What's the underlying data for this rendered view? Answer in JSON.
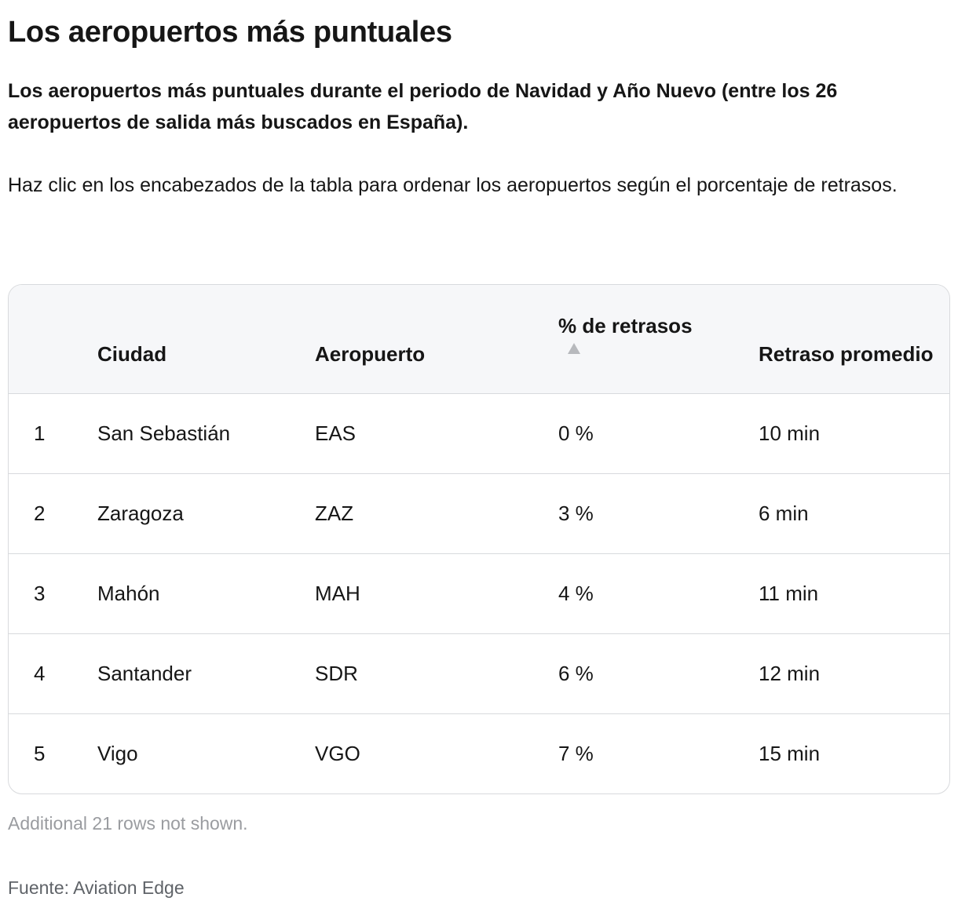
{
  "title": "Los aeropuertos más puntuales",
  "intro": "Los aeropuertos más puntuales durante el periodo de Navidad y Año Nuevo (entre los 26 aeropuertos de salida más buscados en España).",
  "instructions": "Haz clic en los encabezados de la tabla para ordenar los aeropuertos según el porcentaje de retrasos.",
  "table": {
    "headers": {
      "rank": "",
      "city": "Ciudad",
      "airport": "Aeropuerto",
      "delays": "% de retrasos",
      "avg_delay": "Retraso promedio"
    },
    "sort_icon": "sort-ascending-icon",
    "rows": [
      {
        "rank": "1",
        "city": "San Sebastián",
        "airport": "EAS",
        "delays": "0 %",
        "avg_delay": "10 min"
      },
      {
        "rank": "2",
        "city": "Zaragoza",
        "airport": "ZAZ",
        "delays": "3 %",
        "avg_delay": "6 min"
      },
      {
        "rank": "3",
        "city": "Mahón",
        "airport": "MAH",
        "delays": "4 %",
        "avg_delay": "11 min"
      },
      {
        "rank": "4",
        "city": "Santander",
        "airport": "SDR",
        "delays": "6 %",
        "avg_delay": "12 min"
      },
      {
        "rank": "5",
        "city": "Vigo",
        "airport": "VGO",
        "delays": "7 %",
        "avg_delay": "15 min"
      }
    ]
  },
  "footnote": "Additional 21 rows not shown.",
  "source": "Fuente: Aviation Edge"
}
